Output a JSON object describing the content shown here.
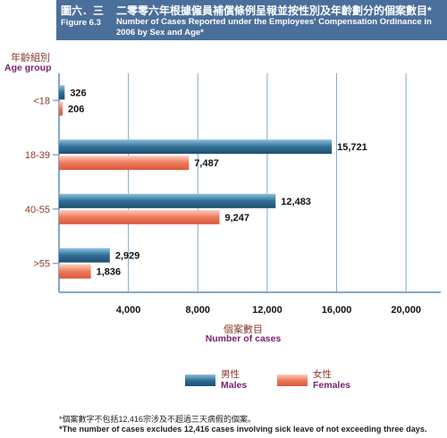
{
  "header": {
    "figure_cn": "圖六．三",
    "figure_en": "Figure 6.3",
    "title_cn": "二零零六年根據僱員補償條例呈報並按性別及年齡劃分的個案數目*",
    "title_en": "Number of Cases Reported under the Employees' Compensation Ordinance in 2006 by Sex and Age*"
  },
  "axis_labels": {
    "y_cn": "年齡組別",
    "y_en": "Age group",
    "x_cn": "個案數目",
    "x_en": "Number of cases"
  },
  "legend": {
    "male_cn": "男性",
    "male_en": "Males",
    "female_cn": "女性",
    "female_en": "Females"
  },
  "footnotes": {
    "cn": "*個案數字不包括12,416宗涉及不超過三天病假的個案。",
    "en": "*The number of cases excludes 12,416 cases involving sick leave of not exceeding three days."
  },
  "colors": {
    "banner": "#4a6f9a",
    "males": "#2f6f95",
    "females": "#ee7a5c",
    "grid": "#7fa9c9",
    "axis_text": "#8b3a2a",
    "label_purple": "#7a2070"
  },
  "chart_data": {
    "type": "bar",
    "orientation": "horizontal",
    "categories": [
      "<18",
      "18-39",
      "40-55",
      ">55"
    ],
    "series": [
      {
        "name": "Males",
        "values": [
          326,
          15721,
          12483,
          2929
        ]
      },
      {
        "name": "Females",
        "values": [
          206,
          7487,
          9247,
          1836
        ]
      }
    ],
    "value_labels": {
      "Males": [
        "326",
        "15,721",
        "12,483",
        "2,929"
      ],
      "Females": [
        "206",
        "7,487",
        "9,247",
        "1,836"
      ]
    },
    "xlim": [
      0,
      22000
    ],
    "xticks": [
      4000,
      8000,
      12000,
      16000,
      20000
    ],
    "xtick_labels": [
      "4,000",
      "8,000",
      "12,000",
      "16,000",
      "20,000"
    ],
    "grid": true,
    "legend_position": "bottom"
  }
}
